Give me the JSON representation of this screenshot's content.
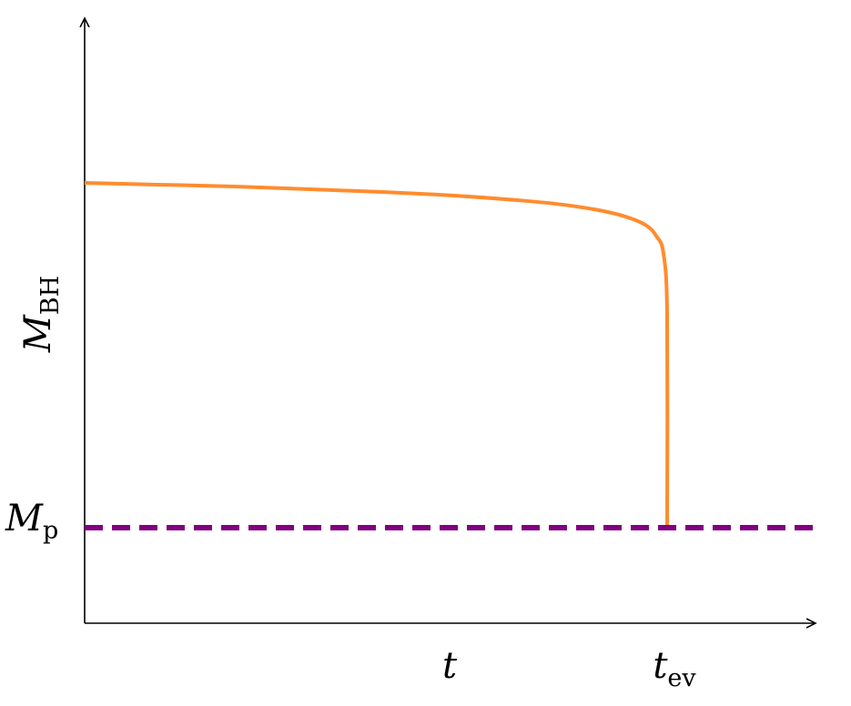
{
  "chart_data": {
    "type": "line",
    "title": "",
    "xlabel": {
      "main": "t",
      "sub": ""
    },
    "ylabel": {
      "main": "M",
      "sub": "BH"
    },
    "x_markers": [
      {
        "main": "t",
        "sub": "ev",
        "x": 0.8
      }
    ],
    "y_markers": [
      {
        "main": "M",
        "sub": "p",
        "y": 0.22
      }
    ],
    "xlim": [
      0,
      1
    ],
    "ylim": [
      0,
      1
    ],
    "grid": false,
    "series": [
      {
        "role": "black-hole-mass",
        "color": "#ff8c2e",
        "style": "solid",
        "x": [
          0,
          0.1,
          0.2,
          0.3,
          0.4,
          0.5,
          0.6,
          0.65,
          0.7,
          0.74,
          0.77,
          0.785,
          0.795,
          0.8,
          0.8
        ],
        "y": [
          1.0,
          0.996,
          0.992,
          0.986,
          0.98,
          0.972,
          0.96,
          0.952,
          0.94,
          0.925,
          0.905,
          0.88,
          0.84,
          0.7,
          0.22
        ]
      },
      {
        "role": "planck-mass-level",
        "color": "#800080",
        "style": "dashed",
        "x": [
          0,
          1
        ],
        "y": [
          0.22,
          0.22
        ]
      }
    ],
    "axis_color": "#000000"
  }
}
